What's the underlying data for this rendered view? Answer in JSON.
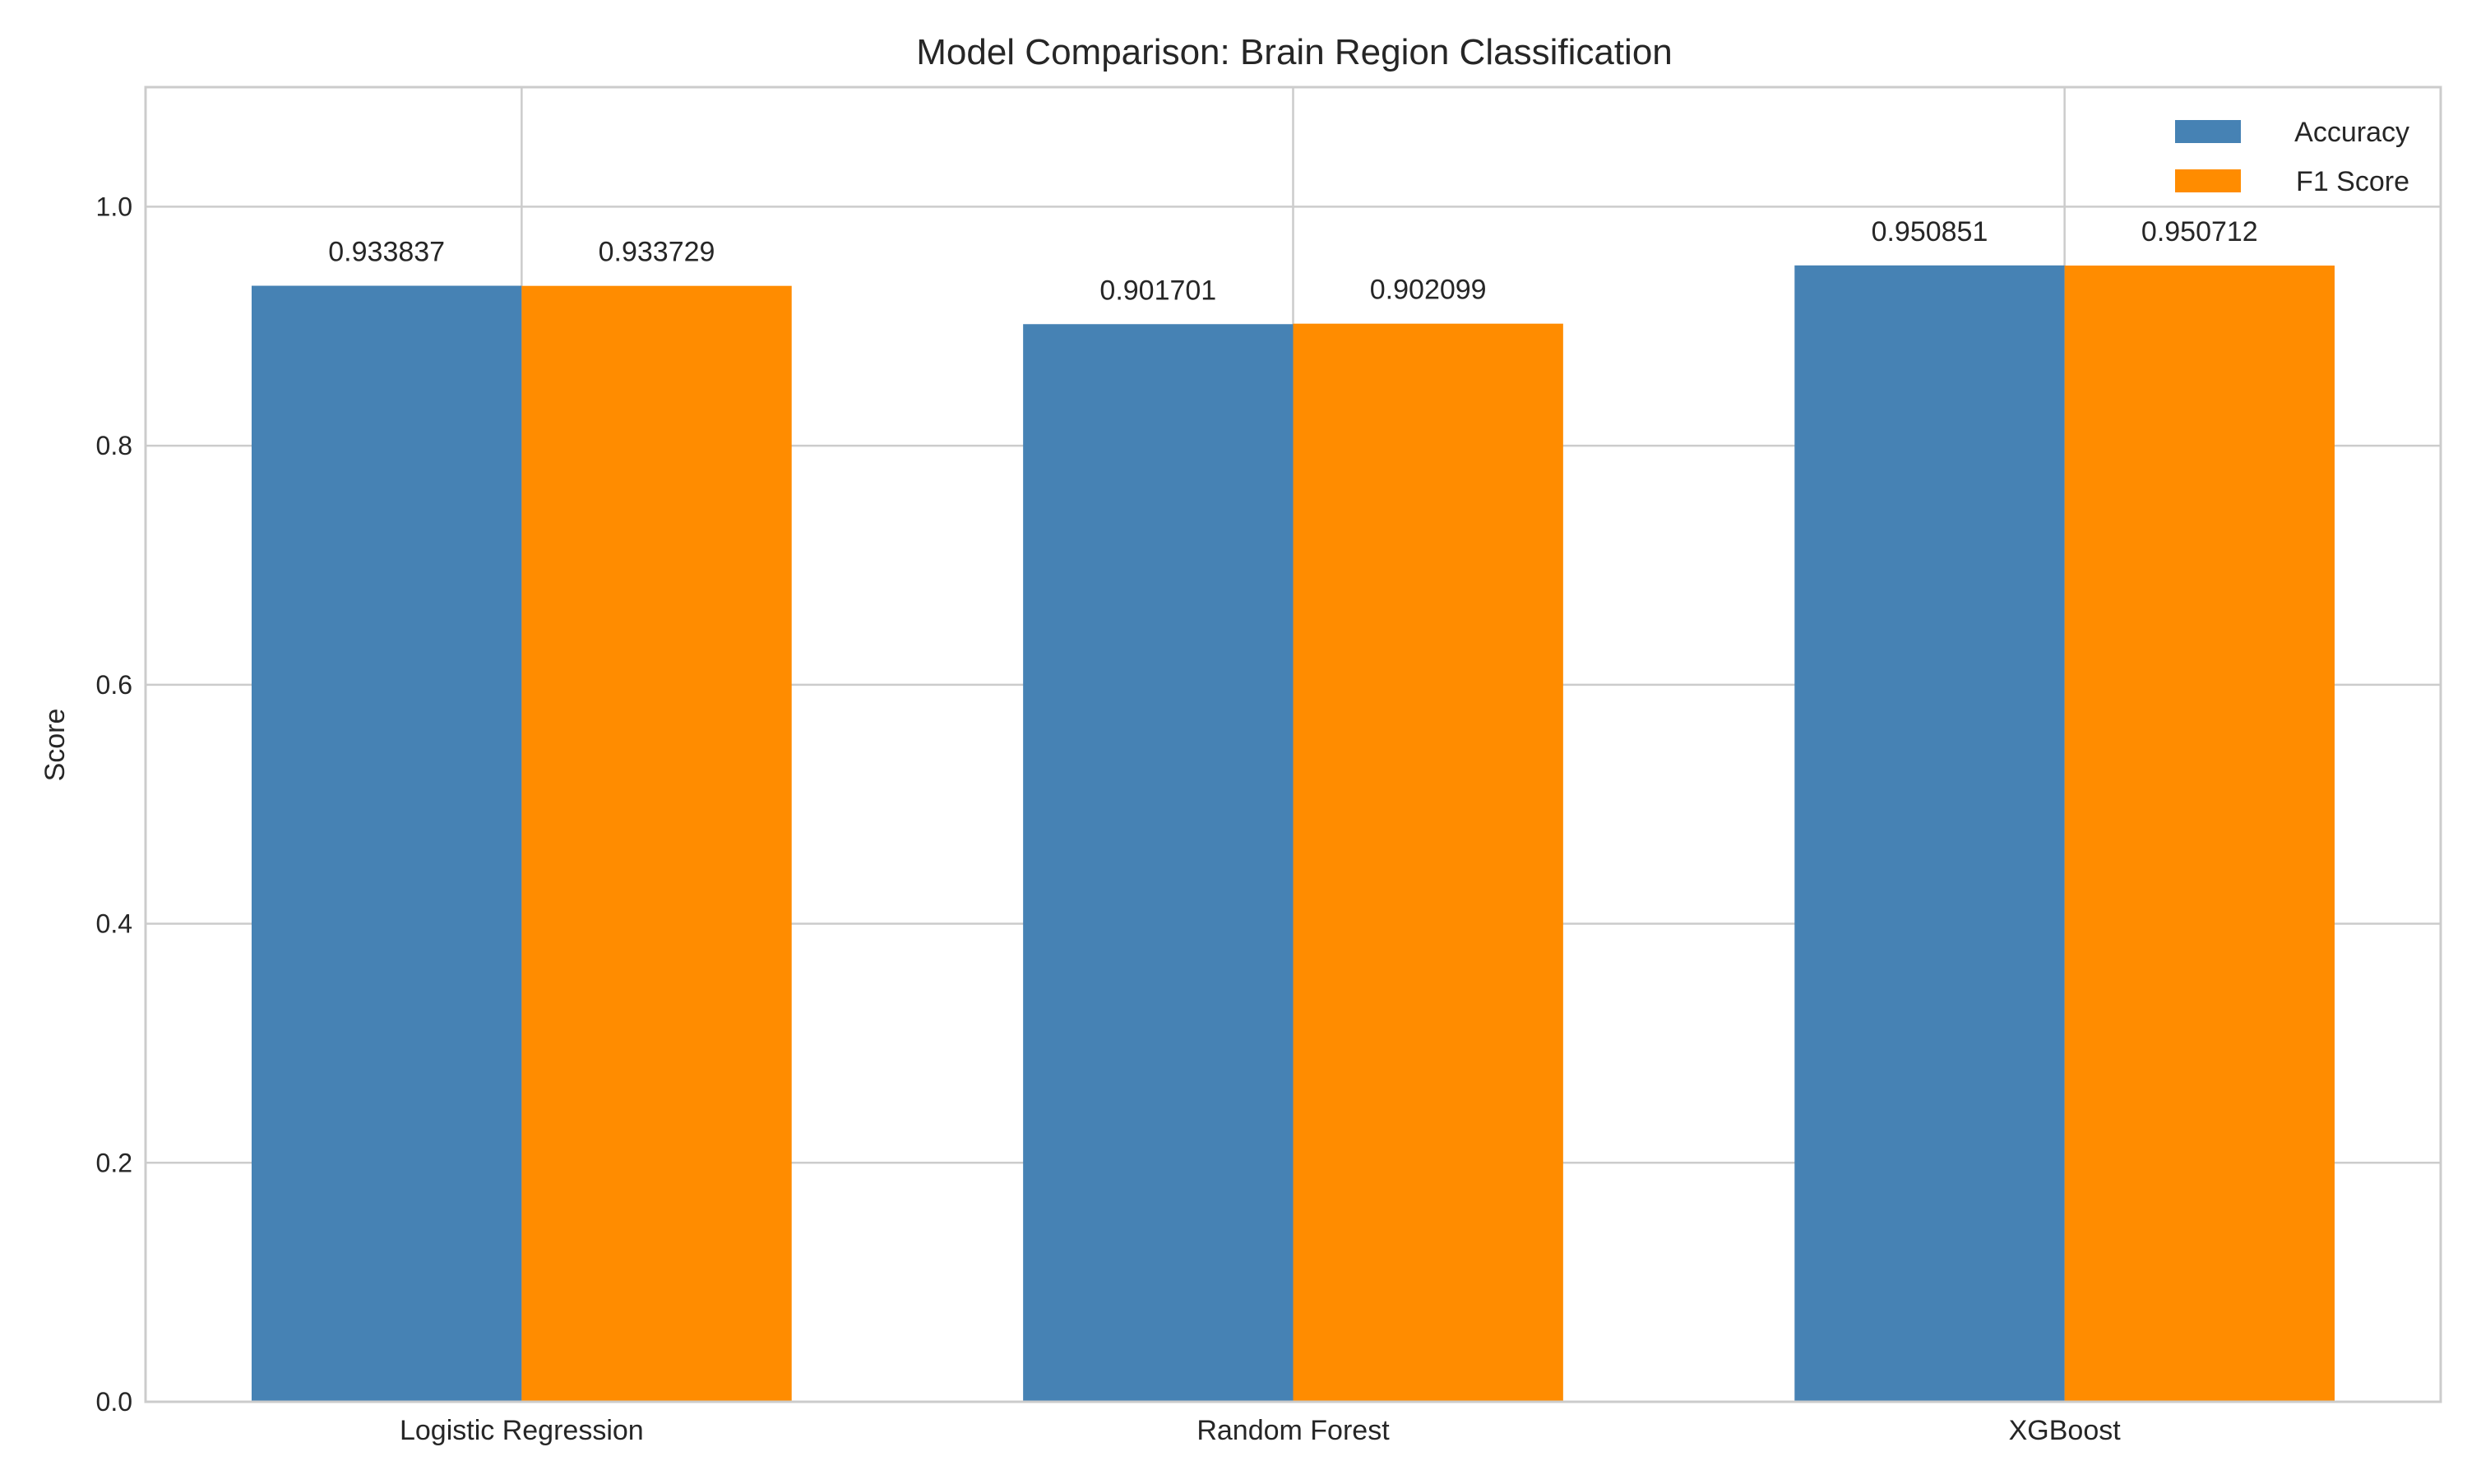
{
  "chart_data": {
    "type": "bar",
    "title": "Model Comparison: Brain Region Classification",
    "xlabel": "",
    "ylabel": "Score",
    "categories": [
      "Logistic Regression",
      "Random Forest",
      "XGBoost"
    ],
    "series": [
      {
        "name": "Accuracy",
        "color": "#4682b4",
        "values": [
          0.933837,
          0.901701,
          0.950851
        ],
        "labels": [
          "0.933837",
          "0.901701",
          "0.950851"
        ]
      },
      {
        "name": "F1 Score",
        "color": "#ff8c00",
        "values": [
          0.933729,
          0.902099,
          0.950712
        ],
        "labels": [
          "0.933729",
          "0.902099",
          "0.950712"
        ]
      }
    ],
    "ylim": [
      0,
      1.1
    ],
    "yticks": [
      0.0,
      0.2,
      0.4,
      0.6,
      0.8,
      1.0
    ],
    "ytick_labels": [
      "0.0",
      "0.2",
      "0.4",
      "0.6",
      "0.8",
      "1.0"
    ],
    "grid": true,
    "legend_position": "top-right"
  }
}
